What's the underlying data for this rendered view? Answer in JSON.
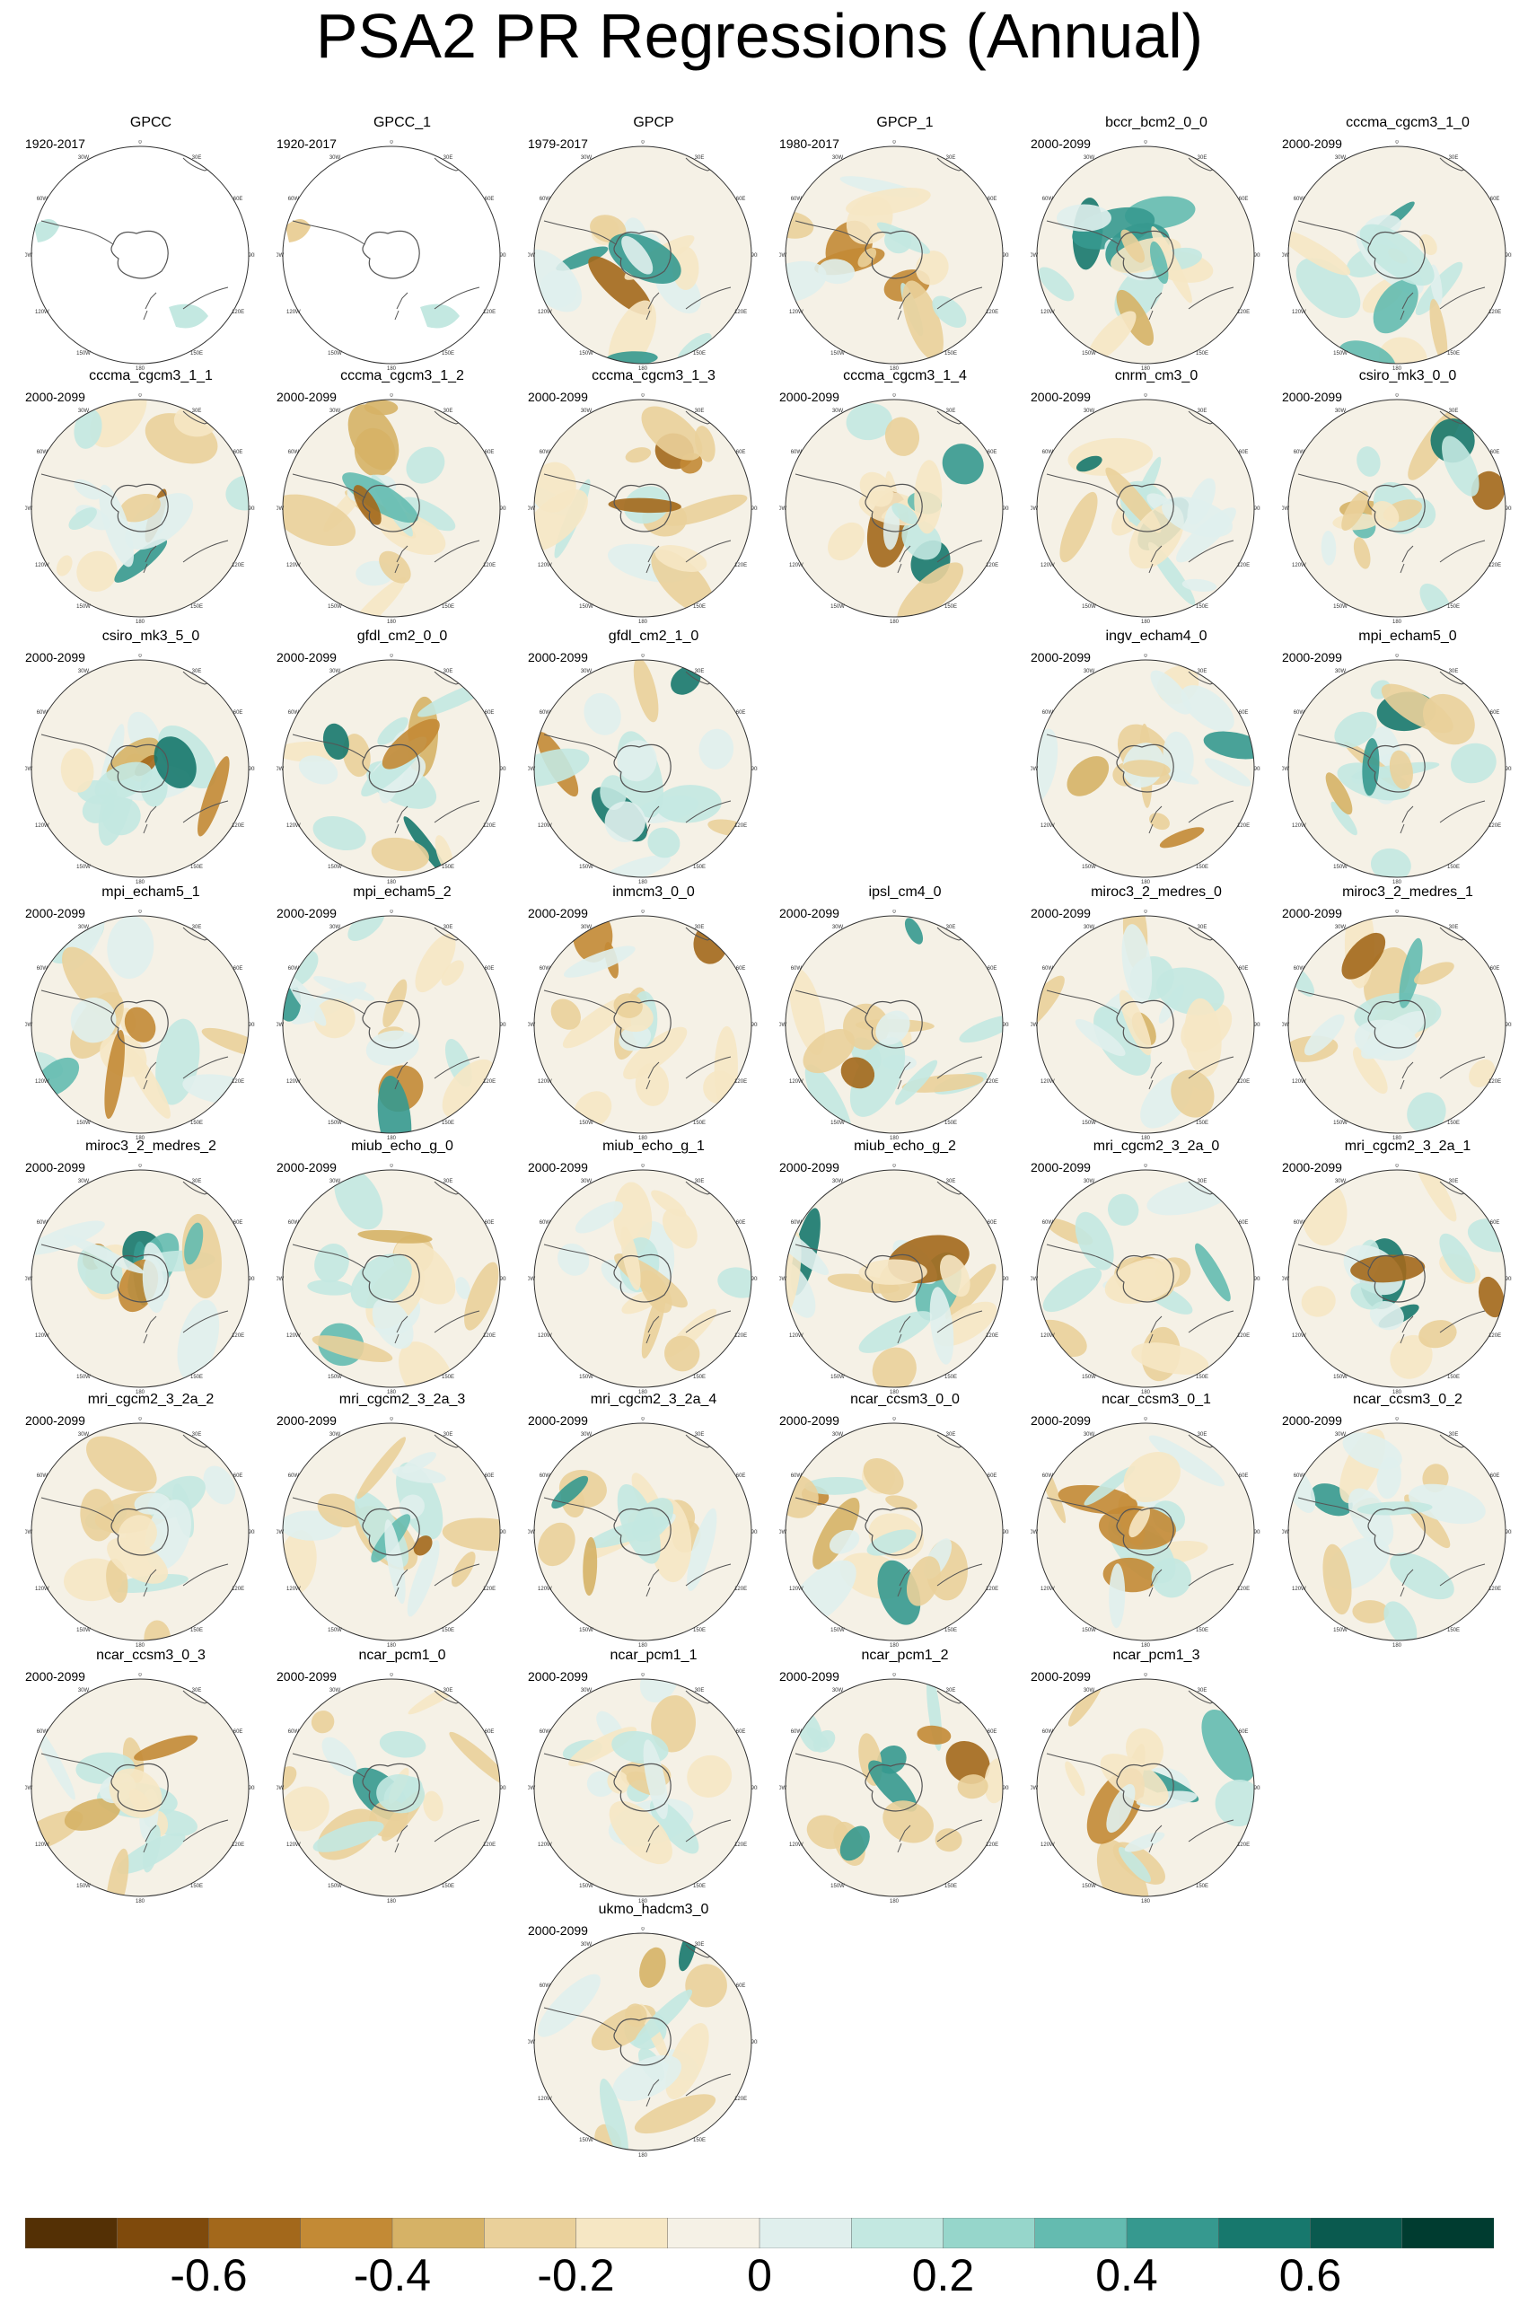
{
  "title": "PSA2 PR Regressions (Annual)",
  "chart_data": {
    "type": "heatmap",
    "title": "PSA2 PR Regressions (Annual)",
    "projection": "south polar stereographic",
    "map_labels": [
      "0",
      "30E",
      "60E",
      "90E",
      "120E",
      "150E",
      "180",
      "150W",
      "120W",
      "90W",
      "60W",
      "30W"
    ],
    "panels": [
      {
        "name": "GPCC",
        "period": "1920-2017"
      },
      {
        "name": "GPCC_1",
        "period": "1920-2017"
      },
      {
        "name": "GPCP",
        "period": "1979-2017"
      },
      {
        "name": "GPCP_1",
        "period": "1980-2017"
      },
      {
        "name": "bccr_bcm2_0_0",
        "period": "2000-2099"
      },
      {
        "name": "cccma_cgcm3_1_0",
        "period": "2000-2099"
      },
      {
        "name": "cccma_cgcm3_1_1",
        "period": "2000-2099"
      },
      {
        "name": "cccma_cgcm3_1_2",
        "period": "2000-2099"
      },
      {
        "name": "cccma_cgcm3_1_3",
        "period": "2000-2099"
      },
      {
        "name": "cccma_cgcm3_1_4",
        "period": "2000-2099"
      },
      {
        "name": "cnrm_cm3_0",
        "period": "2000-2099"
      },
      {
        "name": "csiro_mk3_0_0",
        "period": "2000-2099"
      },
      {
        "name": "csiro_mk3_5_0",
        "period": "2000-2099"
      },
      {
        "name": "gfdl_cm2_0_0",
        "period": "2000-2099"
      },
      {
        "name": "gfdl_cm2_1_0",
        "period": "2000-2099"
      },
      {
        "name": "ingv_echam4_0",
        "period": "2000-2099"
      },
      {
        "name": "mpi_echam5_0",
        "period": "2000-2099"
      },
      {
        "name": "mpi_echam5_1",
        "period": "2000-2099"
      },
      {
        "name": "mpi_echam5_2",
        "period": "2000-2099"
      },
      {
        "name": "inmcm3_0_0",
        "period": "2000-2099"
      },
      {
        "name": "ipsl_cm4_0",
        "period": "2000-2099"
      },
      {
        "name": "miroc3_2_medres_0",
        "period": "2000-2099"
      },
      {
        "name": "miroc3_2_medres_1",
        "period": "2000-2099"
      },
      {
        "name": "miroc3_2_medres_2",
        "period": "2000-2099"
      },
      {
        "name": "miub_echo_g_0",
        "period": "2000-2099"
      },
      {
        "name": "miub_echo_g_1",
        "period": "2000-2099"
      },
      {
        "name": "miub_echo_g_2",
        "period": "2000-2099"
      },
      {
        "name": "mri_cgcm2_3_2a_0",
        "period": "2000-2099"
      },
      {
        "name": "mri_cgcm2_3_2a_1",
        "period": "2000-2099"
      },
      {
        "name": "mri_cgcm2_3_2a_2",
        "period": "2000-2099"
      },
      {
        "name": "mri_cgcm2_3_2a_3",
        "period": "2000-2099"
      },
      {
        "name": "mri_cgcm2_3_2a_4",
        "period": "2000-2099"
      },
      {
        "name": "ncar_ccsm3_0_0",
        "period": "2000-2099"
      },
      {
        "name": "ncar_ccsm3_0_1",
        "period": "2000-2099"
      },
      {
        "name": "ncar_ccsm3_0_2",
        "period": "2000-2099"
      },
      {
        "name": "ncar_ccsm3_0_3",
        "period": "2000-2099"
      },
      {
        "name": "ncar_pcm1_0",
        "period": "2000-2099"
      },
      {
        "name": "ncar_pcm1_1",
        "period": "2000-2099"
      },
      {
        "name": "ncar_pcm1_2",
        "period": "2000-2099"
      },
      {
        "name": "ncar_pcm1_3",
        "period": "2000-2099"
      },
      {
        "name": "ukmo_hadcm3_0",
        "period": "2000-2099"
      }
    ],
    "colorbar": {
      "colors": [
        "#543005",
        "#7f4a0c",
        "#a3681b",
        "#c38a35",
        "#d6b266",
        "#ead09a",
        "#f6e7c4",
        "#f5f1e6",
        "#e0efed",
        "#c3e8e1",
        "#96d6cb",
        "#64bbb0",
        "#36998f",
        "#17786d",
        "#0a5a4f",
        "#003c30"
      ],
      "tick_labels": [
        "-0.6",
        "-0.4",
        "-0.2",
        "0",
        "0.2",
        "0.4",
        "0.6"
      ],
      "tick_values": [
        -0.6,
        -0.4,
        -0.2,
        0,
        0.2,
        0.4,
        0.6
      ],
      "range": [
        -0.8,
        0.8
      ]
    }
  }
}
